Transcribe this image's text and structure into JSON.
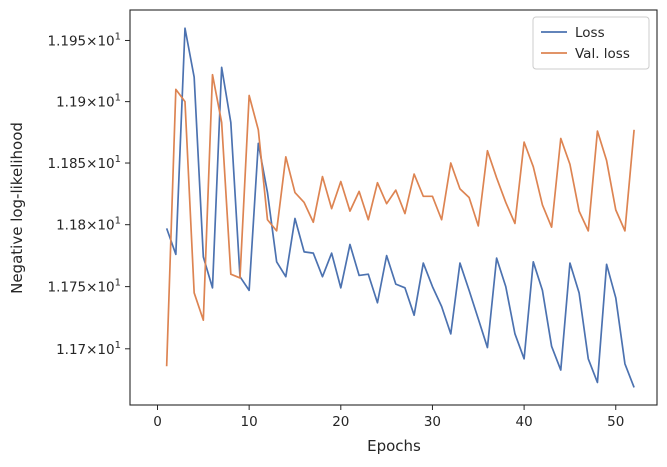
{
  "chart_data": {
    "type": "line",
    "xlabel": "Epochs",
    "ylabel": "Negative log-likelihood",
    "xlim": [
      -3,
      54.5
    ],
    "ylim": [
      11.655,
      11.975
    ],
    "yscale": "log",
    "grid": false,
    "legend_placement": "top-right",
    "x_ticks": [
      0,
      10,
      20,
      30,
      40,
      50
    ],
    "x_tick_labels": [
      "0",
      "10",
      "20",
      "30",
      "40",
      "50"
    ],
    "y_ticks": [
      11.7,
      11.75,
      11.8,
      11.85,
      11.9,
      11.95
    ],
    "y_tick_labels": [
      {
        "mant": "1.17",
        "base": "10",
        "exp": "1"
      },
      {
        "mant": "1.175",
        "base": "10",
        "exp": "1"
      },
      {
        "mant": "1.18",
        "base": "10",
        "exp": "1"
      },
      {
        "mant": "1.185",
        "base": "10",
        "exp": "1"
      },
      {
        "mant": "1.19",
        "base": "10",
        "exp": "1"
      },
      {
        "mant": "1.195",
        "base": "10",
        "exp": "1"
      }
    ],
    "x": [
      1,
      2,
      3,
      4,
      5,
      6,
      7,
      8,
      9,
      10,
      11,
      12,
      13,
      14,
      15,
      16,
      17,
      18,
      19,
      20,
      21,
      22,
      23,
      24,
      25,
      26,
      27,
      28,
      29,
      30,
      31,
      32,
      33,
      34,
      35,
      36,
      37,
      38,
      39,
      40,
      41,
      42,
      43,
      44,
      45,
      46,
      47,
      48,
      49,
      50,
      51,
      52
    ],
    "series": [
      {
        "name": "Loss",
        "color": "#4c72b0",
        "values": [
          11.797,
          11.776,
          11.96,
          11.92,
          11.774,
          11.749,
          11.928,
          11.883,
          11.758,
          11.747,
          11.866,
          11.826,
          11.77,
          11.758,
          11.805,
          11.778,
          11.777,
          11.758,
          11.777,
          11.749,
          11.784,
          11.759,
          11.76,
          11.737,
          11.775,
          11.752,
          11.749,
          11.727,
          11.769,
          11.75,
          11.734,
          11.712,
          11.769,
          11.747,
          11.724,
          11.701,
          11.773,
          11.75,
          11.712,
          11.692,
          11.77,
          11.747,
          11.702,
          11.683,
          11.769,
          11.745,
          11.692,
          11.673,
          11.768,
          11.741,
          11.688,
          11.669
        ]
      },
      {
        "name": "Val. loss",
        "color": "#dd8452",
        "values": [
          11.686,
          11.91,
          11.9,
          11.745,
          11.723,
          11.922,
          11.883,
          11.76,
          11.757,
          11.905,
          11.877,
          11.804,
          11.795,
          11.855,
          11.826,
          11.818,
          11.802,
          11.839,
          11.813,
          11.835,
          11.811,
          11.827,
          11.804,
          11.834,
          11.817,
          11.828,
          11.809,
          11.841,
          11.823,
          11.823,
          11.804,
          11.85,
          11.829,
          11.822,
          11.799,
          11.86,
          11.838,
          11.818,
          11.801,
          11.867,
          11.847,
          11.816,
          11.798,
          11.87,
          11.849,
          11.811,
          11.795,
          11.876,
          11.852,
          11.812,
          11.795,
          11.877
        ]
      }
    ]
  }
}
